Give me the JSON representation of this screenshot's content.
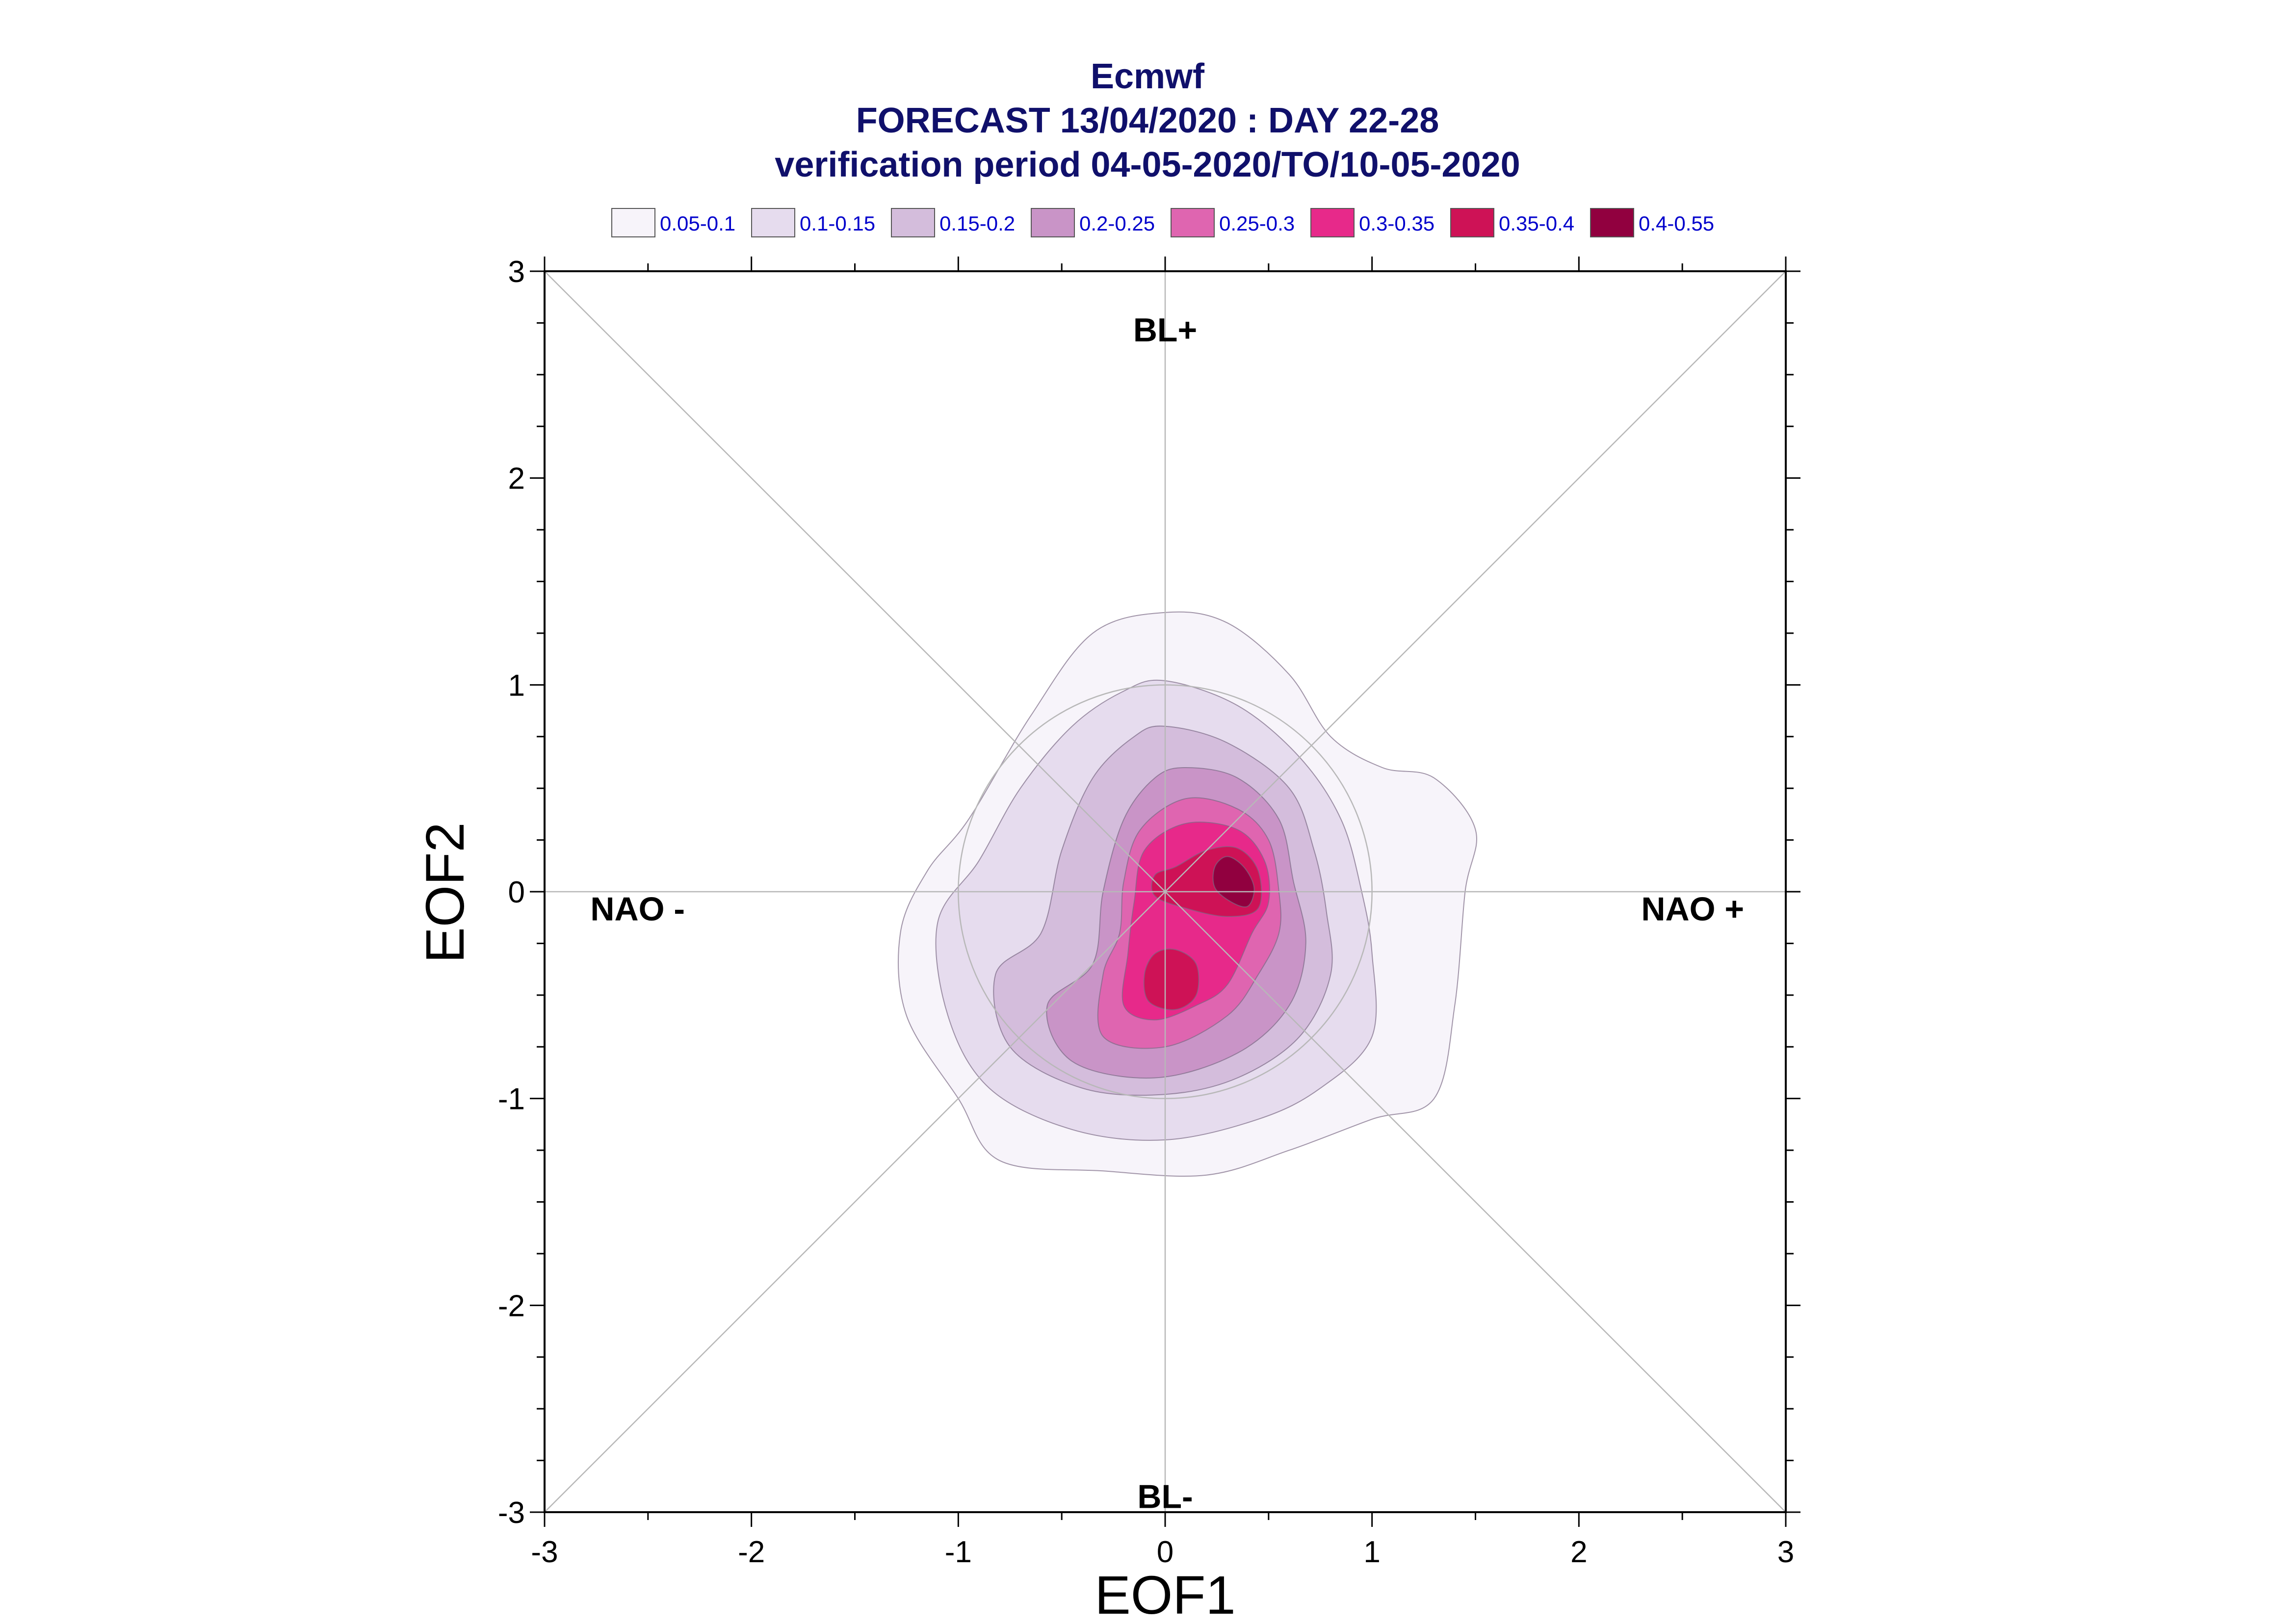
{
  "chart_data": {
    "type": "contour",
    "title_lines": [
      "Ecmwf",
      "FORECAST 13/04/2020 : DAY 22-28",
      "verification period 04-05-2020/TO/10-05-2020"
    ],
    "xlabel": "EOF1",
    "ylabel": "EOF2",
    "xlim": [
      -3,
      3
    ],
    "ylim": [
      -3,
      3
    ],
    "x_ticks": [
      -3,
      -2,
      -1,
      0,
      1,
      2,
      3
    ],
    "y_ticks": [
      -3,
      -2,
      -1,
      0,
      1,
      2,
      3
    ],
    "x_tick_labels": [
      "-3",
      "-2",
      "-1",
      "0",
      "1",
      "2",
      "3"
    ],
    "y_tick_labels": [
      "-3",
      "-2",
      "-1",
      "0",
      "1",
      "2",
      "3"
    ],
    "reference_circle_radius": 1,
    "regime_labels": [
      {
        "text": "BL+",
        "x": 0,
        "y": 2.72
      },
      {
        "text": "BL-",
        "x": 0,
        "y": -2.92
      },
      {
        "text": "NAO -",
        "x": -2.55,
        "y": -0.08
      },
      {
        "text": "NAO +",
        "x": 2.55,
        "y": -0.08
      }
    ],
    "legend": [
      {
        "label": "0.05-0.1",
        "color": "#f7f4fa"
      },
      {
        "label": "0.1-0.15",
        "color": "#e6dcee"
      },
      {
        "label": "0.15-0.2",
        "color": "#d4bddc"
      },
      {
        "label": "0.2-0.25",
        "color": "#c994c7"
      },
      {
        "label": "0.25-0.3",
        "color": "#df65b0"
      },
      {
        "label": "0.3-0.35",
        "color": "#e7298a"
      },
      {
        "label": "0.35-0.4",
        "color": "#ce1256"
      },
      {
        "label": "0.4-0.55",
        "color": "#91003f"
      }
    ],
    "contours": [
      {
        "level": "0.05-0.1",
        "points": [
          [
            0,
            1.35
          ],
          [
            0.3,
            1.3
          ],
          [
            0.6,
            1.05
          ],
          [
            0.8,
            0.75
          ],
          [
            1.05,
            0.6
          ],
          [
            1.3,
            0.55
          ],
          [
            1.5,
            0.3
          ],
          [
            1.45,
            0
          ],
          [
            1.4,
            -0.55
          ],
          [
            1.3,
            -1
          ],
          [
            1.0,
            -1.1
          ],
          [
            0.6,
            -1.25
          ],
          [
            0.2,
            -1.37
          ],
          [
            -0.3,
            -1.35
          ],
          [
            -0.8,
            -1.3
          ],
          [
            -1.0,
            -1.0
          ],
          [
            -1.25,
            -0.6
          ],
          [
            -1.28,
            -0.2
          ],
          [
            -1.15,
            0.1
          ],
          [
            -0.95,
            0.35
          ],
          [
            -0.65,
            0.85
          ],
          [
            -0.35,
            1.25
          ]
        ]
      },
      {
        "level": "0.1-0.15",
        "points": [
          [
            0,
            1.02
          ],
          [
            0.35,
            0.9
          ],
          [
            0.65,
            0.65
          ],
          [
            0.85,
            0.35
          ],
          [
            0.95,
            0
          ],
          [
            1.0,
            -0.3
          ],
          [
            1.0,
            -0.7
          ],
          [
            0.75,
            -0.95
          ],
          [
            0.45,
            -1.1
          ],
          [
            0.0,
            -1.2
          ],
          [
            -0.45,
            -1.15
          ],
          [
            -0.85,
            -0.95
          ],
          [
            -1.05,
            -0.6
          ],
          [
            -1.1,
            -0.15
          ],
          [
            -0.9,
            0.15
          ],
          [
            -0.7,
            0.5
          ],
          [
            -0.45,
            0.8
          ],
          [
            -0.2,
            0.97
          ]
        ]
      },
      {
        "level": "0.15-0.2",
        "points": [
          [
            0,
            0.8
          ],
          [
            0.3,
            0.72
          ],
          [
            0.6,
            0.5
          ],
          [
            0.72,
            0.2
          ],
          [
            0.78,
            -0.1
          ],
          [
            0.8,
            -0.4
          ],
          [
            0.65,
            -0.7
          ],
          [
            0.35,
            -0.9
          ],
          [
            0.0,
            -0.98
          ],
          [
            -0.4,
            -0.95
          ],
          [
            -0.75,
            -0.75
          ],
          [
            -0.82,
            -0.4
          ],
          [
            -0.6,
            -0.2
          ],
          [
            -0.5,
            0.2
          ],
          [
            -0.35,
            0.55
          ],
          [
            -0.15,
            0.75
          ]
        ]
      },
      {
        "level": "0.2-0.25",
        "points": [
          [
            0.1,
            0.6
          ],
          [
            0.35,
            0.55
          ],
          [
            0.55,
            0.35
          ],
          [
            0.62,
            0.05
          ],
          [
            0.68,
            -0.25
          ],
          [
            0.6,
            -0.55
          ],
          [
            0.35,
            -0.78
          ],
          [
            -0.05,
            -0.9
          ],
          [
            -0.45,
            -0.82
          ],
          [
            -0.57,
            -0.55
          ],
          [
            -0.35,
            -0.35
          ],
          [
            -0.3,
            0
          ],
          [
            -0.2,
            0.35
          ],
          [
            -0.05,
            0.55
          ]
        ]
      },
      {
        "level": "0.25-0.3",
        "points": [
          [
            0.1,
            0.45
          ],
          [
            0.35,
            0.4
          ],
          [
            0.5,
            0.25
          ],
          [
            0.55,
            0
          ],
          [
            0.55,
            -0.2
          ],
          [
            0.45,
            -0.4
          ],
          [
            0.3,
            -0.6
          ],
          [
            0.0,
            -0.75
          ],
          [
            -0.3,
            -0.7
          ],
          [
            -0.3,
            -0.4
          ],
          [
            -0.22,
            -0.2
          ],
          [
            -0.2,
            0.05
          ],
          [
            -0.12,
            0.3
          ]
        ]
      },
      {
        "level": "0.3-0.35",
        "points": [
          [
            0.1,
            0.33
          ],
          [
            0.35,
            0.3
          ],
          [
            0.48,
            0.15
          ],
          [
            0.5,
            -0.05
          ],
          [
            0.42,
            -0.2
          ],
          [
            0.3,
            -0.45
          ],
          [
            0.15,
            -0.55
          ],
          [
            -0.05,
            -0.62
          ],
          [
            -0.2,
            -0.55
          ],
          [
            -0.18,
            -0.3
          ],
          [
            -0.15,
            -0.05
          ],
          [
            -0.1,
            0.2
          ]
        ]
      },
      {
        "level": "0.35-0.4",
        "points": [
          [
            0.2,
            0.2
          ],
          [
            0.35,
            0.21
          ],
          [
            0.45,
            0.1
          ],
          [
            0.45,
            -0.08
          ],
          [
            0.3,
            -0.12
          ],
          [
            0.1,
            -0.08
          ],
          [
            -0.05,
            -0.02
          ],
          [
            -0.05,
            0.08
          ],
          [
            0.05,
            0.12
          ]
        ]
      },
      {
        "level": "0.35-0.4",
        "points": [
          [
            0.05,
            -0.28
          ],
          [
            0.15,
            -0.35
          ],
          [
            0.15,
            -0.5
          ],
          [
            0.05,
            -0.57
          ],
          [
            -0.08,
            -0.53
          ],
          [
            -0.1,
            -0.4
          ],
          [
            -0.05,
            -0.3
          ]
        ]
      },
      {
        "level": "0.4-0.55",
        "points": [
          [
            0.3,
            0.17
          ],
          [
            0.38,
            0.12
          ],
          [
            0.43,
            0.02
          ],
          [
            0.4,
            -0.07
          ],
          [
            0.32,
            -0.05
          ],
          [
            0.24,
            0.02
          ],
          [
            0.24,
            0.12
          ]
        ]
      }
    ]
  }
}
